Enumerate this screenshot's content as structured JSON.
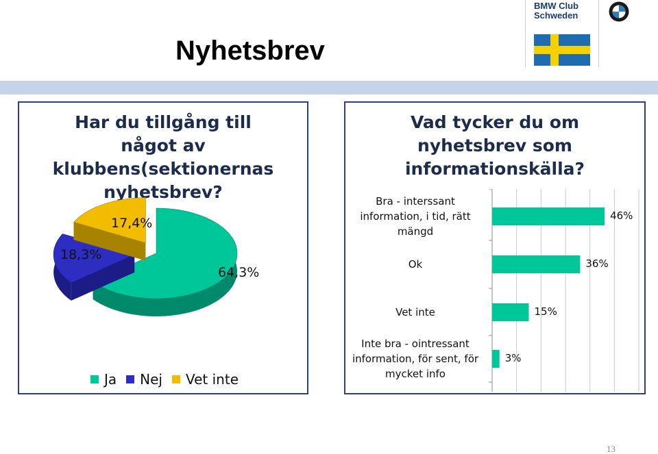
{
  "slide": {
    "title": "Nyhetsbrev",
    "page_number": "13"
  },
  "logo": {
    "line1": "BMW Club",
    "line2": "Schweden"
  },
  "colors": {
    "ja": "#00c79a",
    "nej": "#2d2dc2",
    "vet_inte": "#f2bd00",
    "bar": "#00c79a",
    "band": "#c6d4ea",
    "frame": "#2b3f7f",
    "flag_blue": "#1f6cb0",
    "flag_yellow": "#f7d000"
  },
  "icons": {
    "roundel": "bmw-roundel-icon",
    "flag": "swedish-flag-icon"
  },
  "chart_data": [
    {
      "type": "pie",
      "title": "Har du tillgång till något av klubbens(sektionernas nyhetsbrev?",
      "categories": [
        "Ja",
        "Nej",
        "Vet inte"
      ],
      "values": [
        64.3,
        18.3,
        17.4
      ],
      "labels": [
        "64,3%",
        "18,3%",
        "17,4%"
      ],
      "legend": "bottom"
    },
    {
      "type": "bar",
      "orientation": "horizontal",
      "title": "Vad tycker du om nyhetsbrev som informationskälla?",
      "categories": [
        "Bra - interssant information, i tid, rätt mängd",
        "Ok",
        "Vet inte",
        "Inte bra - ointressant information, för sent, för mycket info"
      ],
      "category_lines": [
        [
          "Bra - interssant",
          "information, i tid, rätt",
          "mängd"
        ],
        [
          "Ok"
        ],
        [
          "Vet inte"
        ],
        [
          "Inte bra - ointressant",
          "information, för sent, för",
          "mycket info"
        ]
      ],
      "values": [
        46,
        36,
        15,
        3
      ],
      "labels": [
        "46%",
        "36%",
        "15%",
        "3%"
      ],
      "xlim": [
        0,
        60
      ],
      "grid": true
    }
  ]
}
